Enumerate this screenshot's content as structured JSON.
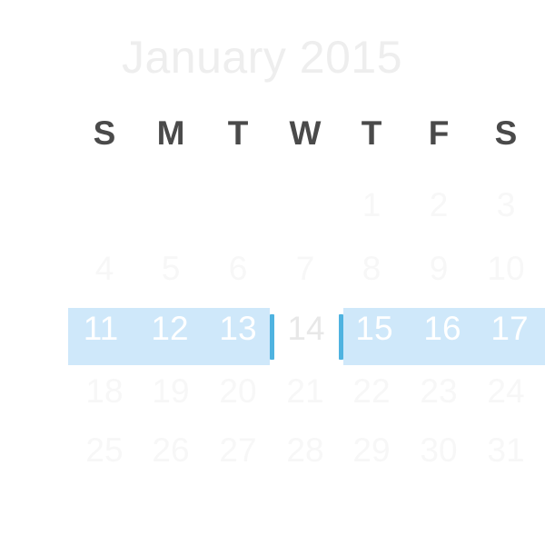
{
  "header": {
    "month_title": "January 2015"
  },
  "weekdays": [
    "S",
    "M",
    "T",
    "W",
    "T",
    "F",
    "S"
  ],
  "weeks": [
    [
      "",
      "",
      "",
      "",
      "1",
      "2",
      "3"
    ],
    [
      "4",
      "5",
      "6",
      "7",
      "8",
      "9",
      "10"
    ],
    [
      "11",
      "12",
      "13",
      "14",
      "15",
      "16",
      "17"
    ],
    [
      "18",
      "19",
      "20",
      "21",
      "22",
      "23",
      "24"
    ],
    [
      "25",
      "26",
      "27",
      "28",
      "29",
      "30",
      "31"
    ]
  ],
  "selection": {
    "ranges": [
      [
        "11",
        "12",
        "13"
      ],
      [
        "15",
        "16",
        "17"
      ]
    ],
    "excluded_day": "14"
  },
  "colors": {
    "selection_fill": "#cfe8fa",
    "selection_edge": "#4fb3e0",
    "weekday_text": "#4a4a4a"
  }
}
